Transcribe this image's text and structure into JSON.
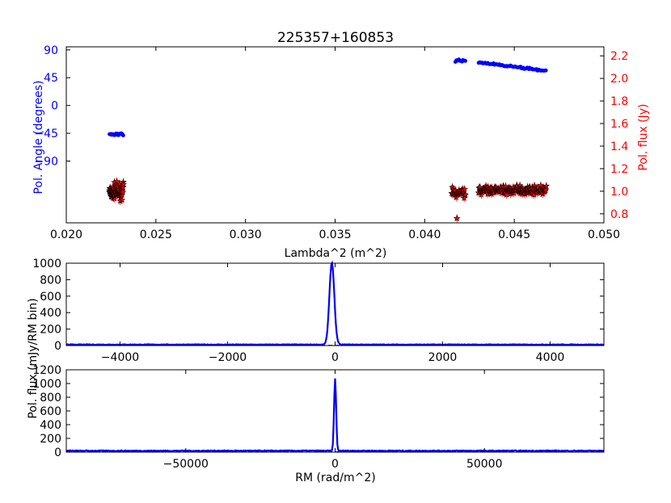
{
  "title": "225357+160853",
  "chart_data": [
    {
      "type": "scatter",
      "name": "polarization-vs-lambda2",
      "xlabel": "Lambda^2 (m^2)",
      "ylabel_left": "Pol. Angle (degrees)",
      "ylabel_right": "Pol. flux (Jy)",
      "xlim": [
        0.02,
        0.05
      ],
      "ylim_left": [
        -190,
        95
      ],
      "ylim_right": [
        0.72,
        2.28
      ],
      "xticks": [
        "0.020",
        "0.025",
        "0.030",
        "0.035",
        "0.040",
        "0.045",
        "0.050"
      ],
      "xtick_values": [
        0.02,
        0.025,
        0.03,
        0.035,
        0.04,
        0.045,
        0.05
      ],
      "yticks_left": [
        "90",
        "45",
        "0",
        "−45",
        "−90"
      ],
      "ytick_values_left": [
        90,
        45,
        0,
        -45,
        -90
      ],
      "yticks_right": [
        "2.2",
        "2.0",
        "1.8",
        "1.6",
        "1.4",
        "1.2",
        "1.0",
        "0.8"
      ],
      "ytick_values_right": [
        2.2,
        2.0,
        1.8,
        1.6,
        1.4,
        1.2,
        1.0,
        0.8
      ],
      "angle_series": {
        "color": "#0000ff",
        "segments": [
          {
            "x_range": [
              0.0224,
              0.0232
            ],
            "y_start": -47,
            "y_end": -47,
            "spread": 3,
            "count": 24
          },
          {
            "x_range": [
              0.0417,
              0.0423
            ],
            "y_start": 73,
            "y_end": 72,
            "spread": 3,
            "count": 10
          },
          {
            "x_range": [
              0.043,
              0.0468
            ],
            "y_start": 70,
            "y_end": 56,
            "spread": 2,
            "count": 60
          }
        ]
      },
      "flux_series": {
        "color": "#ff0000",
        "marker": "star",
        "segments": [
          {
            "x_range": [
              0.0224,
              0.0232
            ],
            "y_center": 1.0,
            "spread": 0.1,
            "count": 70
          },
          {
            "x_range": [
              0.0415,
              0.0423
            ],
            "y_center": 0.99,
            "spread": 0.07,
            "count": 28
          },
          {
            "x_range": [
              0.043,
              0.0468
            ],
            "y_center": 1.01,
            "spread": 0.05,
            "count": 150
          }
        ],
        "outliers": [
          {
            "x": 0.0418,
            "y": 0.76
          }
        ]
      }
    },
    {
      "type": "line",
      "name": "rm-spectrum-zoom",
      "ylabel": "Pol. flux (mJy/RM bin)",
      "xlim": [
        -5000,
        5000
      ],
      "ylim": [
        0,
        1000
      ],
      "xticks": [
        "−4000",
        "−2000",
        "0",
        "2000",
        "4000"
      ],
      "xtick_values": [
        -4000,
        -2000,
        0,
        2000,
        4000
      ],
      "yticks": [
        "0",
        "200",
        "400",
        "600",
        "800",
        "1000"
      ],
      "ytick_values": [
        0,
        200,
        400,
        600,
        800,
        1000
      ],
      "color": "#0000ff",
      "peak": {
        "x": -60,
        "y": 1000,
        "width": 45
      },
      "baseline": 12
    },
    {
      "type": "line",
      "name": "rm-spectrum-wide",
      "ylabel": "Pol. flux (mJy/RM bin)",
      "xlabel": "RM (rad/m^2)",
      "xlim": [
        -90000,
        90000
      ],
      "ylim": [
        0,
        1200
      ],
      "xticks": [
        "−50000",
        "0",
        "50000"
      ],
      "xtick_values": [
        -50000,
        0,
        50000
      ],
      "yticks": [
        "0",
        "200",
        "400",
        "600",
        "800",
        "1000",
        "1200"
      ],
      "ytick_values": [
        0,
        200,
        400,
        600,
        800,
        1000,
        1200
      ],
      "color": "#0000ff",
      "peak": {
        "x": 0,
        "y": 1060,
        "width": 350
      },
      "baseline": 20
    }
  ]
}
